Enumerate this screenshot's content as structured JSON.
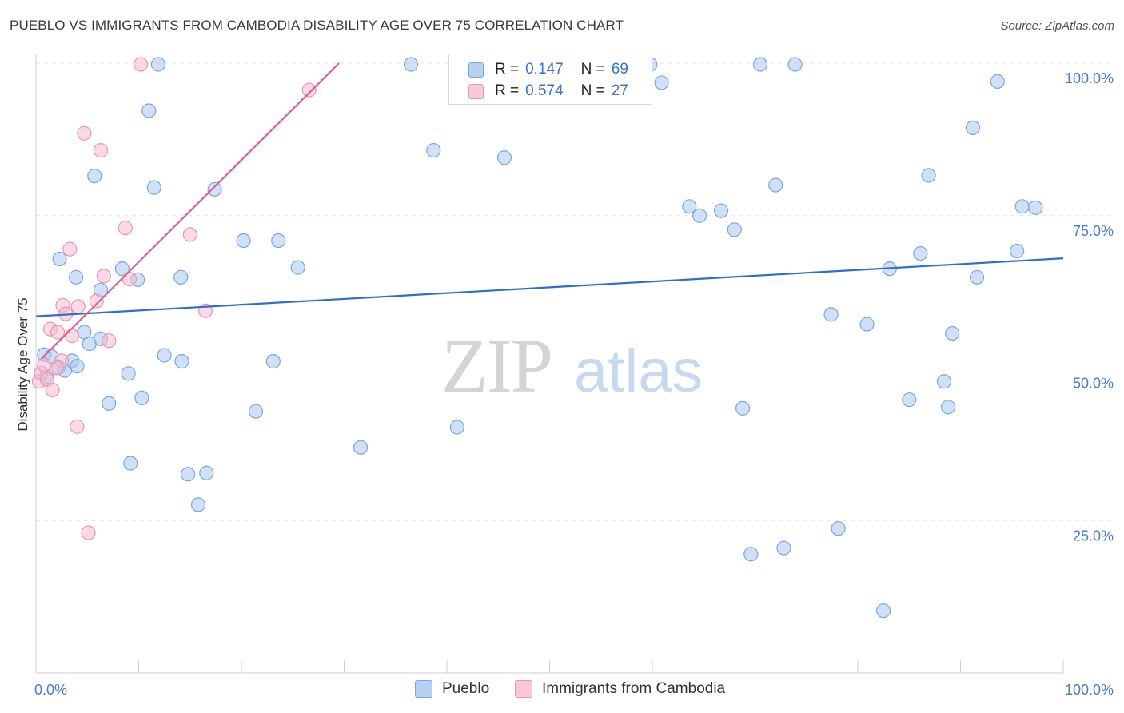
{
  "header": {
    "title": "PUEBLO VS IMMIGRANTS FROM CAMBODIA DISABILITY AGE OVER 75 CORRELATION CHART",
    "source": "Source: ZipAtlas.com"
  },
  "watermark": {
    "zip": "ZIP",
    "atlas": "atlas"
  },
  "legend": {
    "rows": [
      {
        "r_label": "R =",
        "r_value": "0.147",
        "n_label": "N =",
        "n_value": "69"
      },
      {
        "r_label": "R =",
        "r_value": "0.574",
        "n_label": "N =",
        "n_value": "27"
      }
    ]
  },
  "bottom_legend": [
    "Pueblo",
    "Immigrants from Cambodia"
  ],
  "colors": {
    "pueblo_fill": "#a9c8f0",
    "pueblo_stroke": "#7aa6e0",
    "pueblo_line": "#2f6fcc",
    "cambodia_fill": "#f6bcd0",
    "cambodia_stroke": "#e896b3",
    "cambodia_line": "#e0608f",
    "tick_text": "#4a7cc9",
    "grid": "#e3e3e3"
  },
  "chart_data": {
    "type": "scatter",
    "title": "PUEBLO VS IMMIGRANTS FROM CAMBODIA DISABILITY AGE OVER 75 CORRELATION CHART",
    "xlabel": "",
    "ylabel": "Disability Age Over 75",
    "xlim": [
      0,
      100
    ],
    "ylim": [
      0,
      100
    ],
    "x_tick_labels": [
      "0.0%",
      "100.0%"
    ],
    "y_ticks": [
      25,
      50,
      75,
      100
    ],
    "y_tick_labels": [
      "25.0%",
      "50.0%",
      "75.0%",
      "100.0%"
    ],
    "grid": "horizontal dashed",
    "legend_placement": "top-center",
    "series": [
      {
        "name": "Pueblo",
        "r": 0.147,
        "n": 69,
        "trend": {
          "x": [
            0,
            100
          ],
          "y": [
            58.5,
            68.0
          ]
        },
        "points": [
          [
            0.8,
            52.2
          ],
          [
            1.5,
            51.9
          ],
          [
            2.2,
            50.1
          ],
          [
            2.8,
            49.6
          ],
          [
            3.5,
            51.2
          ],
          [
            2.3,
            67.9
          ],
          [
            3.9,
            64.9
          ],
          [
            4.7,
            55.9
          ],
          [
            5.2,
            54.0
          ],
          [
            6.3,
            54.8
          ],
          [
            5.7,
            81.5
          ],
          [
            6.3,
            62.8
          ],
          [
            7.1,
            44.2
          ],
          [
            8.4,
            66.3
          ],
          [
            9.0,
            49.1
          ],
          [
            9.2,
            34.4
          ],
          [
            9.9,
            64.5
          ],
          [
            10.3,
            45.1
          ],
          [
            11.0,
            92.2
          ],
          [
            11.5,
            79.6
          ],
          [
            11.9,
            99.8
          ],
          [
            12.5,
            52.1
          ],
          [
            14.1,
            64.9
          ],
          [
            14.2,
            51.1
          ],
          [
            14.8,
            32.6
          ],
          [
            15.8,
            27.6
          ],
          [
            16.6,
            32.8
          ],
          [
            17.4,
            79.3
          ],
          [
            20.2,
            70.9
          ],
          [
            21.4,
            42.9
          ],
          [
            23.1,
            51.1
          ],
          [
            23.6,
            70.9
          ],
          [
            25.5,
            66.5
          ],
          [
            31.6,
            37.0
          ],
          [
            36.5,
            99.8
          ],
          [
            38.7,
            85.7
          ],
          [
            41.0,
            40.3
          ],
          [
            45.6,
            84.5
          ],
          [
            59.8,
            99.8
          ],
          [
            60.9,
            96.8
          ],
          [
            63.6,
            76.5
          ],
          [
            64.6,
            75.0
          ],
          [
            66.7,
            75.8
          ],
          [
            68.0,
            72.7
          ],
          [
            68.8,
            43.4
          ],
          [
            69.6,
            19.5
          ],
          [
            70.5,
            99.8
          ],
          [
            72.0,
            80.0
          ],
          [
            72.8,
            20.5
          ],
          [
            73.9,
            99.8
          ],
          [
            77.4,
            58.8
          ],
          [
            78.1,
            23.7
          ],
          [
            80.9,
            57.2
          ],
          [
            82.5,
            10.2
          ],
          [
            83.1,
            66.3
          ],
          [
            85.0,
            44.8
          ],
          [
            86.1,
            68.8
          ],
          [
            86.9,
            81.6
          ],
          [
            88.4,
            47.8
          ],
          [
            88.8,
            43.6
          ],
          [
            89.2,
            55.7
          ],
          [
            91.2,
            89.4
          ],
          [
            91.6,
            64.9
          ],
          [
            93.6,
            97.0
          ],
          [
            95.5,
            69.2
          ],
          [
            96.0,
            76.5
          ],
          [
            97.3,
            76.3
          ],
          [
            1.0,
            48.6
          ],
          [
            4.0,
            50.3
          ]
        ]
      },
      {
        "name": "Immigrants from Cambodia",
        "r": 0.574,
        "n": 27,
        "trend": {
          "x": [
            0.5,
            29.5
          ],
          "y": [
            51.5,
            100
          ]
        },
        "points": [
          [
            0.3,
            47.8
          ],
          [
            0.5,
            49.2
          ],
          [
            0.8,
            50.5
          ],
          [
            1.1,
            48.1
          ],
          [
            1.4,
            56.4
          ],
          [
            1.6,
            46.4
          ],
          [
            2.1,
            55.9
          ],
          [
            2.5,
            51.2
          ],
          [
            2.6,
            60.3
          ],
          [
            2.9,
            58.9
          ],
          [
            3.3,
            69.5
          ],
          [
            3.5,
            55.3
          ],
          [
            4.1,
            60.1
          ],
          [
            4.0,
            40.4
          ],
          [
            4.7,
            88.5
          ],
          [
            5.1,
            23.0
          ],
          [
            5.9,
            61.0
          ],
          [
            6.3,
            85.7
          ],
          [
            6.6,
            65.1
          ],
          [
            7.1,
            54.5
          ],
          [
            8.7,
            73.0
          ],
          [
            9.1,
            64.6
          ],
          [
            10.2,
            99.8
          ],
          [
            15.0,
            71.9
          ],
          [
            16.5,
            59.4
          ],
          [
            26.6,
            95.6
          ],
          [
            2.0,
            50.0
          ]
        ]
      }
    ]
  }
}
